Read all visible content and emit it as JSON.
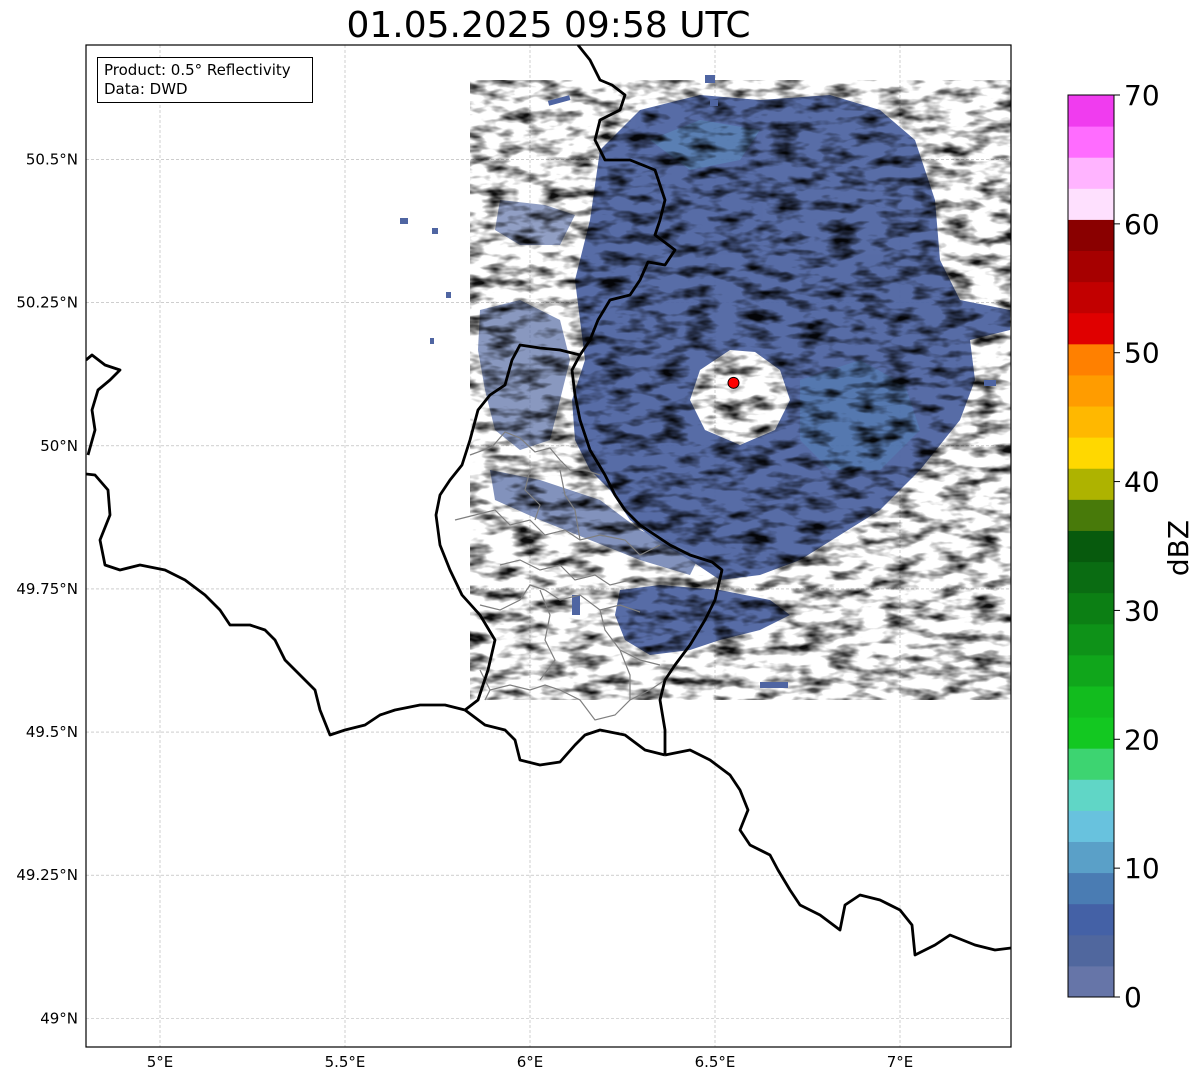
{
  "title": "01.05.2025 09:58 UTC",
  "info": {
    "product": "Product: 0.5° Reflectivity",
    "data": "Data: DWD"
  },
  "axes": {
    "lon_ticks": [
      {
        "value": 5.0,
        "label": "5°E"
      },
      {
        "value": 5.5,
        "label": "5.5°E"
      },
      {
        "value": 6.0,
        "label": "6°E"
      },
      {
        "value": 6.5,
        "label": "6.5°E"
      },
      {
        "value": 7.0,
        "label": "7°E"
      }
    ],
    "lat_ticks": [
      {
        "value": 50.5,
        "label": "50.5°N"
      },
      {
        "value": 50.25,
        "label": "50.25°N"
      },
      {
        "value": 50.0,
        "label": "50°N"
      },
      {
        "value": 49.75,
        "label": "49.75°N"
      },
      {
        "value": 49.5,
        "label": "49.5°N"
      },
      {
        "value": 49.25,
        "label": "49.25°N"
      },
      {
        "value": 49.0,
        "label": "49°N"
      }
    ],
    "lon_range": [
      4.8,
      7.3
    ],
    "lat_range": [
      48.95,
      50.7
    ],
    "grid": true
  },
  "radar": {
    "lon": 6.55,
    "lat": 50.11,
    "marker_color": "#ff0000"
  },
  "colorbar": {
    "label": "dBZ",
    "range": [
      0,
      70
    ],
    "tick_labels": [
      "0",
      "10",
      "20",
      "30",
      "40",
      "50",
      "60",
      "70"
    ],
    "colors": [
      "#6675a8",
      "#50679e",
      "#4461a6",
      "#4a7cb3",
      "#5aa0c8",
      "#68c2de",
      "#60d6c6",
      "#3dd471",
      "#13c821",
      "#12bc1e",
      "#10a61b",
      "#0e9218",
      "#0c7f14",
      "#0a6c12",
      "#075a0d",
      "#487a0a",
      "#aeb300",
      "#ffd800",
      "#ffb800",
      "#ff9c00",
      "#ff8000",
      "#e00000",
      "#c20000",
      "#a60000",
      "#8a0000",
      "#fee0fe",
      "#ffb4ff",
      "#ff6cff",
      "#f03cef"
    ]
  }
}
